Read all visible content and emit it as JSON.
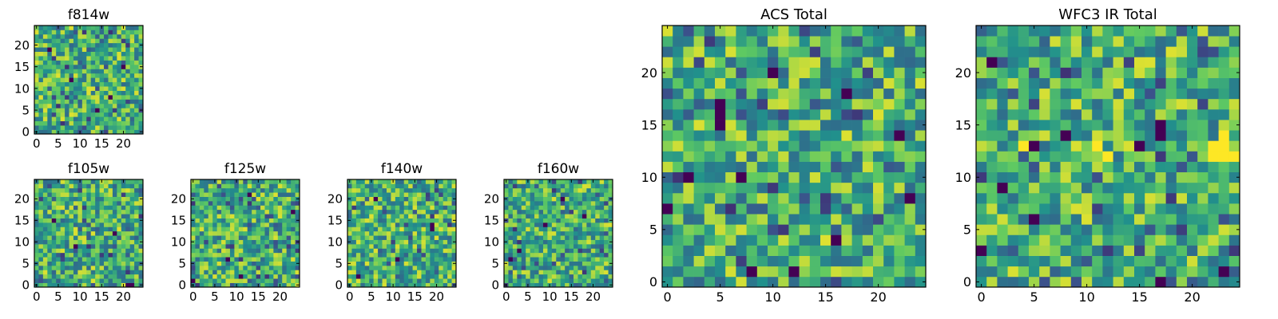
{
  "page": {
    "background": "#ffffff"
  },
  "colormap": {
    "name": "viridis",
    "stops": [
      "#440154",
      "#3b528b",
      "#21918c",
      "#5ec962",
      "#fde725"
    ]
  },
  "chart_data": [
    {
      "id": "f814w",
      "type": "heatmap",
      "title": "f814w",
      "grid": [
        25,
        25
      ],
      "xlim": [
        0,
        24
      ],
      "ylim": [
        0,
        24
      ],
      "xticks": [
        0,
        5,
        10,
        15,
        20
      ],
      "yticks": [
        0,
        5,
        10,
        15,
        20
      ],
      "xtick_labels": [
        "0",
        "5",
        "10",
        "15",
        "20"
      ],
      "ytick_labels": [
        "0",
        "5",
        "10",
        "15",
        "20"
      ],
      "value_range": [
        0,
        1
      ],
      "seed": 11,
      "dark_pixels": [
        [
          14,
          5
        ],
        [
          20,
          15
        ],
        [
          3,
          19
        ],
        [
          8,
          12
        ],
        [
          17,
          8
        ]
      ]
    },
    {
      "id": "f105w",
      "type": "heatmap",
      "title": "f105w",
      "grid": [
        25,
        25
      ],
      "xlim": [
        0,
        24
      ],
      "ylim": [
        0,
        24
      ],
      "xticks": [
        0,
        5,
        10,
        15,
        20
      ],
      "yticks": [
        0,
        5,
        10,
        15,
        20
      ],
      "xtick_labels": [
        "0",
        "5",
        "10",
        "15",
        "20"
      ],
      "ytick_labels": [
        "0",
        "5",
        "10",
        "15",
        "20"
      ],
      "value_range": [
        0,
        1
      ],
      "seed": 23,
      "dark_pixels": [
        [
          21,
          0
        ],
        [
          22,
          0
        ],
        [
          4,
          15
        ],
        [
          9,
          9
        ],
        [
          18,
          12
        ]
      ]
    },
    {
      "id": "f125w",
      "type": "heatmap",
      "title": "f125w",
      "grid": [
        25,
        25
      ],
      "xlim": [
        0,
        24
      ],
      "ylim": [
        0,
        24
      ],
      "xticks": [
        0,
        5,
        10,
        15,
        20
      ],
      "yticks": [
        0,
        5,
        10,
        15,
        20
      ],
      "xtick_labels": [
        "0",
        "5",
        "10",
        "15",
        "20"
      ],
      "ytick_labels": [
        "0",
        "5",
        "10",
        "15",
        "20"
      ],
      "value_range": [
        0,
        1
      ],
      "seed": 37,
      "dark_pixels": [
        [
          8,
          6
        ],
        [
          13,
          21
        ],
        [
          23,
          17
        ],
        [
          0,
          1
        ],
        [
          11,
          2
        ]
      ]
    },
    {
      "id": "f140w",
      "type": "heatmap",
      "title": "f140w",
      "grid": [
        25,
        25
      ],
      "xlim": [
        0,
        24
      ],
      "ylim": [
        0,
        24
      ],
      "xticks": [
        0,
        5,
        10,
        15,
        20
      ],
      "yticks": [
        0,
        5,
        10,
        15,
        20
      ],
      "xtick_labels": [
        "0",
        "5",
        "10",
        "15",
        "20"
      ],
      "ytick_labels": [
        "0",
        "5",
        "10",
        "15",
        "20"
      ],
      "value_range": [
        0,
        1
      ],
      "seed": 41,
      "dark_pixels": [
        [
          19,
          14
        ],
        [
          19,
          13
        ],
        [
          6,
          20
        ],
        [
          11,
          6
        ],
        [
          2,
          2
        ]
      ]
    },
    {
      "id": "f160w",
      "type": "heatmap",
      "title": "f160w",
      "grid": [
        25,
        25
      ],
      "xlim": [
        0,
        24
      ],
      "ylim": [
        0,
        24
      ],
      "xticks": [
        0,
        5,
        10,
        15,
        20
      ],
      "yticks": [
        0,
        5,
        10,
        15,
        20
      ],
      "xtick_labels": [
        "0",
        "5",
        "10",
        "15",
        "20"
      ],
      "ytick_labels": [
        "0",
        "5",
        "10",
        "15",
        "20"
      ],
      "value_range": [
        0,
        1
      ],
      "seed": 53,
      "dark_pixels": [
        [
          1,
          6
        ],
        [
          3,
          8
        ],
        [
          18,
          16
        ],
        [
          13,
          20
        ],
        [
          9,
          14
        ]
      ]
    },
    {
      "id": "acs_total",
      "type": "heatmap",
      "title": "ACS Total",
      "grid": [
        25,
        25
      ],
      "xlim": [
        0,
        24
      ],
      "ylim": [
        0,
        24
      ],
      "xticks": [
        0,
        5,
        10,
        15,
        20
      ],
      "yticks": [
        0,
        5,
        10,
        15,
        20
      ],
      "xtick_labels": [
        "0",
        "5",
        "10",
        "15",
        "20"
      ],
      "ytick_labels": [
        "0",
        "5",
        "10",
        "15",
        "20"
      ],
      "value_range": [
        0,
        1
      ],
      "seed": 67,
      "dark_pixels": [
        [
          5,
          16
        ],
        [
          5,
          15
        ],
        [
          5,
          17
        ],
        [
          10,
          20
        ],
        [
          17,
          18
        ],
        [
          22,
          14
        ],
        [
          23,
          8
        ],
        [
          2,
          10
        ],
        [
          7,
          10
        ],
        [
          8,
          1
        ],
        [
          16,
          4
        ],
        [
          0,
          7
        ],
        [
          12,
          1
        ]
      ]
    },
    {
      "id": "wfc3_ir_total",
      "type": "heatmap",
      "title": "WFC3 IR Total",
      "grid": [
        25,
        25
      ],
      "xlim": [
        0,
        24
      ],
      "ylim": [
        0,
        24
      ],
      "xticks": [
        0,
        5,
        10,
        15,
        20
      ],
      "yticks": [
        0,
        5,
        10,
        15,
        20
      ],
      "xtick_labels": [
        "0",
        "5",
        "10",
        "15",
        "20"
      ],
      "ytick_labels": [
        "0",
        "5",
        "10",
        "15",
        "20"
      ],
      "value_range": [
        0,
        1
      ],
      "seed": 79,
      "dark_pixels": [
        [
          1,
          21
        ],
        [
          17,
          15
        ],
        [
          17,
          14
        ],
        [
          5,
          13
        ],
        [
          8,
          14
        ],
        [
          2,
          9
        ],
        [
          5,
          6
        ],
        [
          23,
          1
        ],
        [
          17,
          0
        ],
        [
          0,
          3
        ],
        [
          15,
          13
        ]
      ],
      "bright_pixels": [
        [
          22,
          13
        ],
        [
          23,
          13
        ],
        [
          22,
          12
        ],
        [
          23,
          12
        ],
        [
          24,
          12
        ],
        [
          23,
          14
        ],
        [
          12,
          12
        ],
        [
          11,
          13
        ],
        [
          4,
          13
        ]
      ]
    }
  ]
}
